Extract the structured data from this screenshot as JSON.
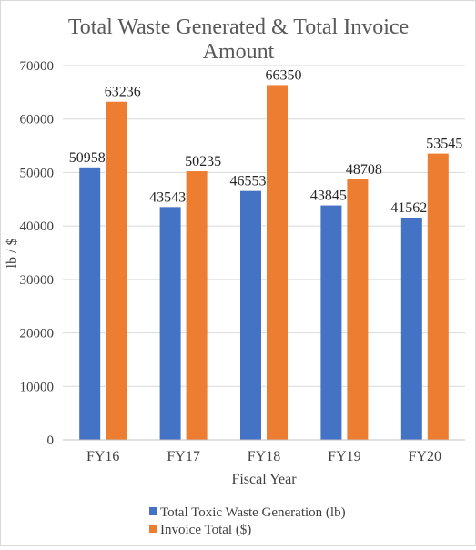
{
  "chart_data": {
    "type": "bar",
    "title_line1": "Total Waste Generated & Total Invoice",
    "title_line2": "Amount",
    "xlabel": "Fiscal Year",
    "ylabel": "lb / $",
    "categories": [
      "FY16",
      "FY17",
      "FY18",
      "FY19",
      "FY20"
    ],
    "ylim": [
      0,
      70000
    ],
    "yticks": [
      0,
      10000,
      20000,
      30000,
      40000,
      50000,
      60000,
      70000
    ],
    "grid": true,
    "legend_position": "bottom",
    "series": [
      {
        "name": "Total Toxic Waste Generation (lb)",
        "color": "#4472c4",
        "values": [
          50958,
          43543,
          46553,
          43845,
          41562
        ]
      },
      {
        "name": "Invoice Total ($)",
        "color": "#ed7d31",
        "values": [
          63236,
          50235,
          66350,
          48708,
          53545
        ]
      }
    ]
  }
}
